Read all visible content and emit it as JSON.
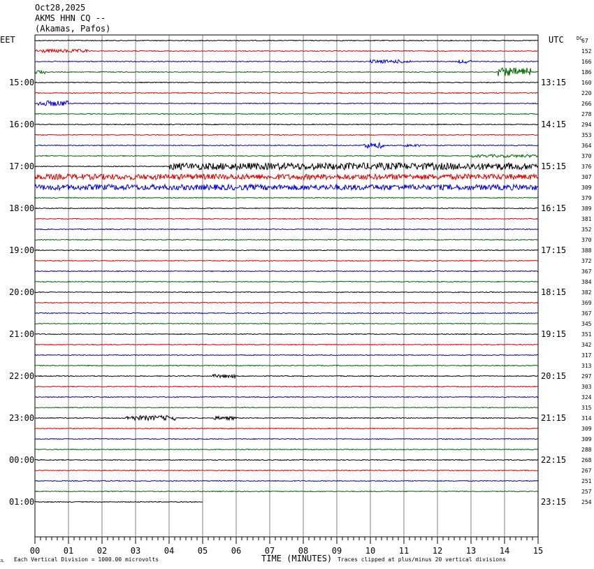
{
  "header": {
    "date": "Oct28,2025",
    "station": "AKMS HHN CQ --",
    "location": "(Akamas, Pafos)"
  },
  "left_tz": "EET",
  "right_tz": "UTC",
  "dc_label": "DC",
  "xlabel": "TIME (MINUTES)",
  "footer_left": "Each Vertical Division = 1000.00 microvolts",
  "footer_right": "Traces clipped at plus/minus 20 vertical divisions",
  "corner_mark": "JL",
  "colors": {
    "trace_cycle": [
      "#000000",
      "#d40000",
      "#0000c8",
      "#006400"
    ],
    "grid": "#808080"
  },
  "chart_data": {
    "type": "line",
    "title": "AKMS HHN CQ --",
    "xlabel": "TIME (MINUTES)",
    "xlim": [
      0,
      15
    ],
    "x_ticks": [
      "00",
      "01",
      "02",
      "03",
      "04",
      "05",
      "06",
      "07",
      "08",
      "09",
      "10",
      "11",
      "12",
      "13",
      "14",
      "15"
    ],
    "left_time_labels": [
      "15:00",
      "16:00",
      "17:00",
      "18:00",
      "19:00",
      "20:00",
      "21:00",
      "22:00",
      "23:00",
      "00:00",
      "01:00"
    ],
    "right_time_labels": [
      "13:15",
      "14:15",
      "15:15",
      "16:15",
      "17:15",
      "18:15",
      "19:15",
      "20:15",
      "21:15",
      "22:15",
      "23:15"
    ],
    "dc_values": [
      67,
      152,
      166,
      186,
      160,
      220,
      266,
      278,
      294,
      353,
      364,
      370,
      376,
      307,
      309,
      379,
      389,
      381,
      352,
      370,
      388,
      372,
      367,
      384,
      382,
      369,
      367,
      345,
      351,
      342,
      317,
      313,
      297,
      303,
      324,
      315,
      314,
      309,
      309,
      288,
      268,
      267,
      251,
      257,
      254
    ],
    "last_trace_end_minute": 5,
    "events": [
      {
        "trace": 1,
        "start": 0.0,
        "end": 1.6,
        "amp": 2.5
      },
      {
        "trace": 2,
        "start": 10.0,
        "end": 11.2,
        "amp": 2.5
      },
      {
        "trace": 2,
        "start": 12.6,
        "end": 13.0,
        "amp": 2.5
      },
      {
        "trace": 3,
        "start": 0.0,
        "end": 0.3,
        "amp": 2.5
      },
      {
        "trace": 3,
        "start": 13.8,
        "end": 14.8,
        "amp": 6
      },
      {
        "trace": 6,
        "start": 0.1,
        "end": 1.0,
        "amp": 4
      },
      {
        "trace": 10,
        "start": 9.8,
        "end": 10.4,
        "amp": 4
      },
      {
        "trace": 10,
        "start": 11.0,
        "end": 11.5,
        "amp": 2
      },
      {
        "trace": 11,
        "start": 13.0,
        "end": 15.0,
        "amp": 2
      },
      {
        "trace": 12,
        "start": 4.0,
        "end": 15.0,
        "amp": 5
      },
      {
        "trace": 13,
        "start": 0.0,
        "end": 15.0,
        "amp": 4
      },
      {
        "trace": 14,
        "start": 0.0,
        "end": 15.0,
        "amp": 4
      },
      {
        "trace": 32,
        "start": 5.3,
        "end": 6.0,
        "amp": 2.5
      },
      {
        "trace": 36,
        "start": 2.7,
        "end": 4.2,
        "amp": 3.5
      },
      {
        "trace": 36,
        "start": 5.3,
        "end": 6.0,
        "amp": 2.5
      }
    ]
  }
}
